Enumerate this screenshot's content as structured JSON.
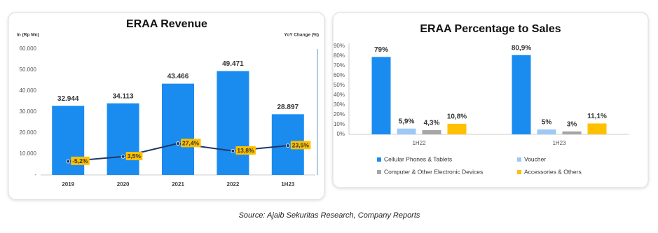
{
  "chart_data": [
    {
      "type": "bar",
      "title": "ERAA Revenue",
      "ylabel": "In (Rp Mn)",
      "y2label": "YoY Change (%)",
      "categories": [
        "2019",
        "2020",
        "2021",
        "2022",
        "1H23"
      ],
      "series": [
        {
          "color": "#1a8cf0",
          "values": [
            32944,
            34113,
            43466,
            49471,
            28897
          ],
          "value_labels": [
            "32.944",
            "34.113",
            "43.466",
            "49.471",
            "28.897"
          ]
        },
        {
          "type": "line",
          "axis": "y2",
          "color": "#1f3864",
          "label_color": "#ffc000",
          "values": [
            -5.2,
            3.5,
            27.4,
            13.8,
            23.5
          ],
          "value_labels": [
            "-5,2%",
            "3,5%",
            "27,4%",
            "13,8%",
            "23,5%"
          ]
        }
      ],
      "ylim": [
        0,
        60000
      ],
      "yticks": [
        {
          "value": 0,
          "label": "-"
        },
        {
          "value": 10000,
          "label": "10.000"
        },
        {
          "value": 20000,
          "label": "20.000"
        },
        {
          "value": 30000,
          "label": "30.000"
        },
        {
          "value": 40000,
          "label": "40.000"
        },
        {
          "value": 50000,
          "label": "50.000"
        },
        {
          "value": 60000,
          "label": "60.000"
        }
      ],
      "y2lim": [
        -30,
        200
      ],
      "grid": false
    },
    {
      "type": "bar",
      "title": "ERAA Percentage to Sales",
      "categories": [
        "1H22",
        "1H23"
      ],
      "series": [
        {
          "name": "Cellular Phones & Tablets",
          "color": "#1a8cf0",
          "values": [
            79,
            80.9
          ],
          "value_labels": [
            "79%",
            "80,9%"
          ]
        },
        {
          "name": "Voucher",
          "color": "#9ec9f5",
          "values": [
            5.9,
            5
          ],
          "value_labels": [
            "5,9%",
            "5%"
          ]
        },
        {
          "name": "Computer & Other Electronic Devices",
          "color": "#a6a6a6",
          "values": [
            4.3,
            3
          ],
          "value_labels": [
            "4,3%",
            "3%"
          ]
        },
        {
          "name": "Accessories & Others",
          "color": "#ffc000",
          "values": [
            10.8,
            11.1
          ],
          "value_labels": [
            "10,8%",
            "11,1%"
          ]
        }
      ],
      "ylim": [
        0,
        90
      ],
      "yticks": [
        {
          "value": 0,
          "label": "0%"
        },
        {
          "value": 10,
          "label": "10%"
        },
        {
          "value": 20,
          "label": "20%"
        },
        {
          "value": 30,
          "label": "30%"
        },
        {
          "value": 40,
          "label": "40%"
        },
        {
          "value": 50,
          "label": "50%"
        },
        {
          "value": 60,
          "label": "60%"
        },
        {
          "value": 70,
          "label": "70%"
        },
        {
          "value": 80,
          "label": "80%"
        },
        {
          "value": 90,
          "label": "90%"
        }
      ],
      "legend": "bottom",
      "grid": false
    }
  ],
  "source": "Source: Ajaib Sekuritas Research, Company Reports"
}
